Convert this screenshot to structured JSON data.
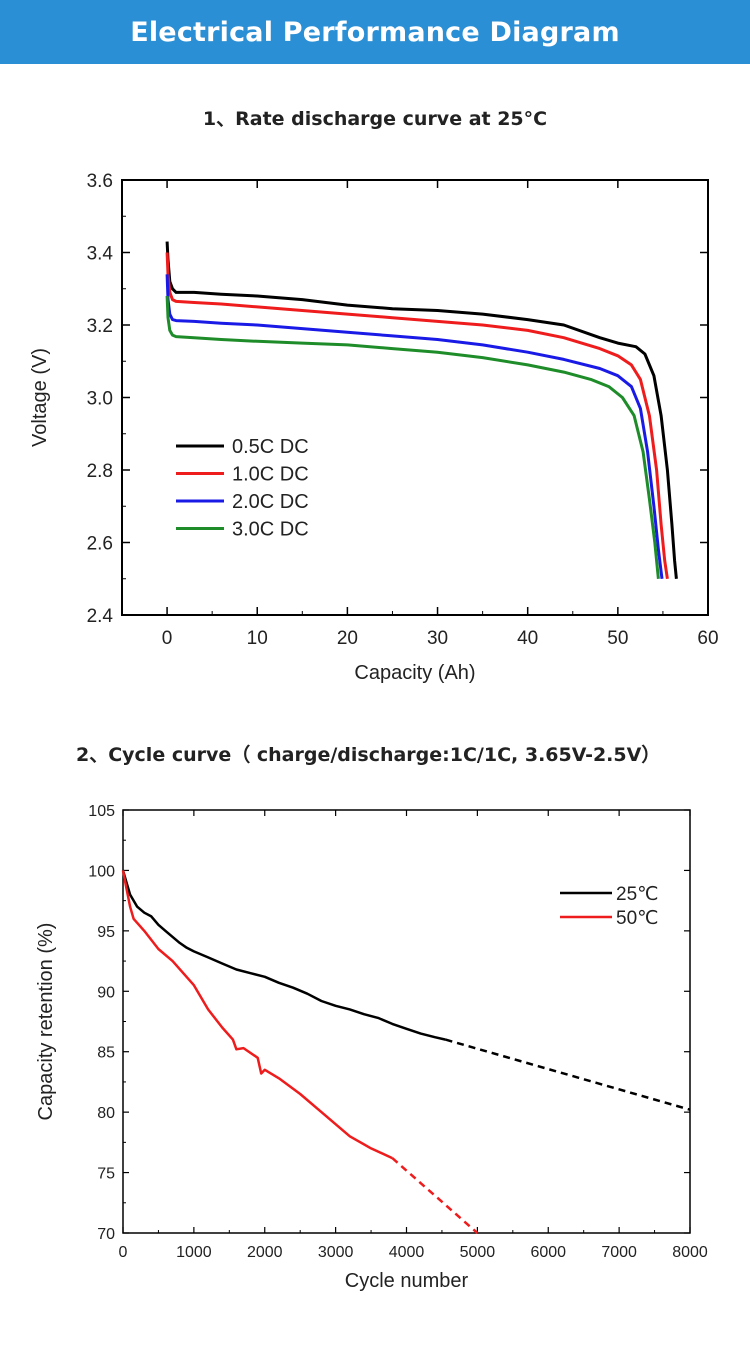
{
  "header": {
    "title": "Electrical Performance Diagram"
  },
  "section1": {
    "title": "1、Rate discharge curve at 25°C"
  },
  "section2": {
    "title": "2、Cycle curve（ charge/discharge:1C/1C, 3.65V-2.5V）"
  },
  "chart_data": [
    {
      "type": "line",
      "title": "Rate discharge curve at 25°C",
      "xlabel": "Capacity (Ah)",
      "ylabel": "Voltage (V)",
      "xlim": [
        -5,
        60
      ],
      "ylim": [
        2.4,
        3.6
      ],
      "xticks": [
        0,
        10,
        20,
        30,
        40,
        50,
        60
      ],
      "yticks": [
        2.4,
        2.6,
        2.8,
        3.0,
        3.2,
        3.4,
        3.6
      ],
      "legend_position": "lower-left",
      "series": [
        {
          "name": "0.5C DC",
          "color": "#000000",
          "x": [
            0,
            0.1,
            0.3,
            0.6,
            1,
            3,
            6,
            10,
            15,
            20,
            25,
            30,
            35,
            40,
            44,
            48,
            50,
            52,
            53,
            54,
            54.8,
            55.5,
            56,
            56.3,
            56.5
          ],
          "y": [
            3.43,
            3.38,
            3.32,
            3.3,
            3.29,
            3.29,
            3.285,
            3.28,
            3.27,
            3.255,
            3.245,
            3.24,
            3.23,
            3.215,
            3.2,
            3.165,
            3.15,
            3.14,
            3.12,
            3.06,
            2.95,
            2.8,
            2.65,
            2.55,
            2.5
          ]
        },
        {
          "name": "1.0C DC",
          "color": "#ee1c1c",
          "x": [
            0,
            0.1,
            0.3,
            0.6,
            1,
            3,
            6,
            10,
            15,
            20,
            25,
            30,
            35,
            40,
            44,
            48,
            50,
            51.5,
            52.5,
            53.5,
            54.3,
            54.8,
            55.2,
            55.5
          ],
          "y": [
            3.4,
            3.34,
            3.29,
            3.27,
            3.265,
            3.262,
            3.258,
            3.25,
            3.24,
            3.23,
            3.22,
            3.21,
            3.2,
            3.185,
            3.165,
            3.135,
            3.115,
            3.09,
            3.05,
            2.95,
            2.8,
            2.65,
            2.55,
            2.5
          ]
        },
        {
          "name": "2.0C DC",
          "color": "#1a1ae6",
          "x": [
            0,
            0.1,
            0.3,
            0.6,
            1,
            3,
            6,
            10,
            15,
            20,
            25,
            30,
            35,
            40,
            44,
            48,
            50,
            51.5,
            52.5,
            53.3,
            54,
            54.5,
            54.9
          ],
          "y": [
            3.34,
            3.27,
            3.23,
            3.215,
            3.212,
            3.21,
            3.205,
            3.2,
            3.19,
            3.18,
            3.17,
            3.16,
            3.145,
            3.125,
            3.105,
            3.08,
            3.06,
            3.03,
            2.97,
            2.85,
            2.7,
            2.58,
            2.5
          ]
        },
        {
          "name": "3.0C DC",
          "color": "#1f8c2a",
          "x": [
            0,
            0.1,
            0.3,
            0.6,
            1,
            3,
            6,
            10,
            15,
            20,
            25,
            30,
            35,
            40,
            44,
            47,
            49,
            50.5,
            51.8,
            52.8,
            53.5,
            54.1,
            54.5
          ],
          "y": [
            3.28,
            3.22,
            3.185,
            3.172,
            3.168,
            3.165,
            3.16,
            3.155,
            3.15,
            3.145,
            3.135,
            3.125,
            3.11,
            3.09,
            3.07,
            3.05,
            3.03,
            3.0,
            2.95,
            2.85,
            2.72,
            2.6,
            2.5
          ]
        }
      ]
    },
    {
      "type": "line",
      "title": "Cycle curve (charge/discharge:1C/1C, 3.65V-2.5V)",
      "xlabel": "Cycle number",
      "ylabel": "Capacity retention (%)",
      "xlim": [
        0,
        8000
      ],
      "ylim": [
        70,
        105
      ],
      "xticks": [
        0,
        1000,
        2000,
        3000,
        4000,
        5000,
        6000,
        7000,
        8000
      ],
      "yticks": [
        70,
        75,
        80,
        85,
        90,
        95,
        100,
        105
      ],
      "legend_position": "top-right",
      "series": [
        {
          "name": "25℃",
          "color": "#000000",
          "x": [
            0,
            50,
            100,
            200,
            300,
            400,
            500,
            600,
            700,
            800,
            900,
            1000,
            1200,
            1400,
            1600,
            1800,
            2000,
            2200,
            2400,
            2600,
            2800,
            3000,
            3200,
            3400,
            3600,
            3800,
            4000,
            4200,
            4400,
            4550
          ],
          "y": [
            100,
            99,
            98,
            97,
            96.5,
            96.2,
            95.5,
            95,
            94.5,
            94,
            93.6,
            93.3,
            92.8,
            92.3,
            91.8,
            91.5,
            91.2,
            90.7,
            90.3,
            89.8,
            89.2,
            88.8,
            88.5,
            88.1,
            87.8,
            87.3,
            86.9,
            86.5,
            86.2,
            86.0
          ]
        },
        {
          "name": "50℃",
          "color": "#ee1c1c",
          "x": [
            0,
            50,
            100,
            150,
            300,
            500,
            700,
            1000,
            1200,
            1400,
            1550,
            1600,
            1700,
            1900,
            1950,
            2000,
            2200,
            2500,
            2800,
            3000,
            3200,
            3500,
            3800
          ],
          "y": [
            100,
            98.5,
            97,
            96,
            95,
            93.5,
            92.5,
            90.5,
            88.5,
            87,
            86,
            85.2,
            85.3,
            84.5,
            83.2,
            83.5,
            82.8,
            81.5,
            80,
            79,
            78,
            77,
            76.2
          ]
        }
      ],
      "projections": [
        {
          "series": "25℃",
          "x": [
            4550,
            8000
          ],
          "y": [
            86.0,
            80.2
          ],
          "style": "dashed"
        },
        {
          "series": "50℃",
          "x": [
            3800,
            5000
          ],
          "y": [
            76.2,
            70
          ],
          "style": "dashed"
        }
      ]
    }
  ]
}
